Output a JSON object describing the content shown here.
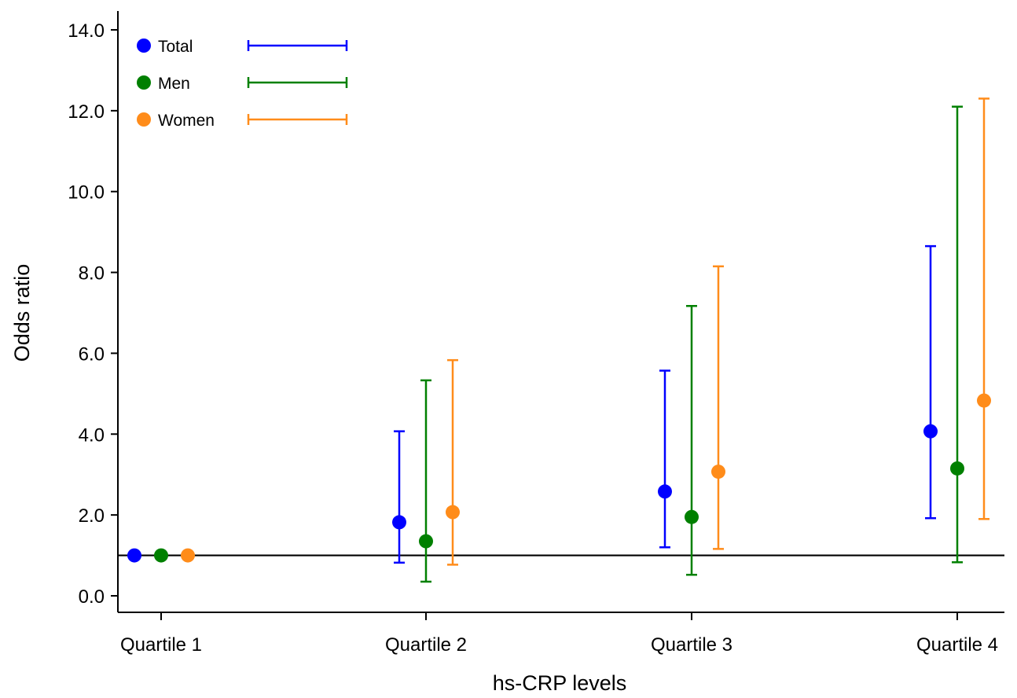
{
  "chart_data": {
    "type": "scatter",
    "subtype": "point-estimate with error bars",
    "title": "",
    "xlabel": "hs-CRP levels",
    "ylabel": "Odds ratio",
    "ylim": [
      -0.4,
      14.4
    ],
    "yticks": [
      "0.0",
      "2.0",
      "4.0",
      "6.0",
      "8.0",
      "10.0",
      "12.0",
      "14.0"
    ],
    "ytick_values": [
      0,
      2,
      4,
      6,
      8,
      10,
      12,
      14
    ],
    "categories": [
      "Quartile 1",
      "Quartile 2",
      "Quartile 3",
      "Quartile 4"
    ],
    "reference_line": 1.0,
    "grid": false,
    "legend_position": "top-left",
    "series": [
      {
        "name": "Total",
        "color": "#0000ff",
        "values": [
          1.0,
          1.82,
          2.58,
          4.07
        ],
        "lower": [
          null,
          0.82,
          1.2,
          1.92
        ],
        "upper": [
          null,
          4.07,
          5.57,
          8.65
        ]
      },
      {
        "name": "Men",
        "color": "#008000",
        "values": [
          1.0,
          1.35,
          1.95,
          3.15
        ],
        "lower": [
          null,
          0.35,
          0.52,
          0.83
        ],
        "upper": [
          null,
          5.33,
          7.17,
          12.1
        ]
      },
      {
        "name": "Women",
        "color": "#ff8c1a",
        "values": [
          1.0,
          2.07,
          3.07,
          4.83
        ],
        "lower": [
          null,
          0.77,
          1.16,
          1.9
        ],
        "upper": [
          null,
          5.83,
          8.15,
          12.3
        ]
      }
    ]
  }
}
